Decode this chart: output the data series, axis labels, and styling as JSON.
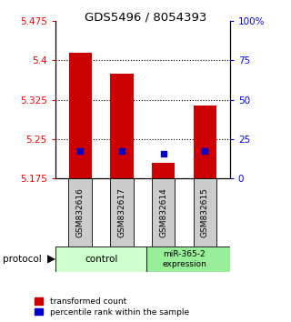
{
  "title": "GDS5496 / 8054393",
  "samples": [
    "GSM832616",
    "GSM832617",
    "GSM832614",
    "GSM832615"
  ],
  "red_values": [
    5.415,
    5.375,
    5.205,
    5.315
  ],
  "blue_values": [
    5.228,
    5.228,
    5.222,
    5.228
  ],
  "ylim": [
    5.175,
    5.475
  ],
  "yticks_left": [
    5.175,
    5.25,
    5.325,
    5.4,
    5.475
  ],
  "yticks_right": [
    0,
    25,
    50,
    75,
    100
  ],
  "bar_color": "#cc0000",
  "blue_color": "#0000cc",
  "baseline": 5.175,
  "legend_red": "transformed count",
  "legend_blue": "percentile rank within the sample",
  "bar_width": 0.55,
  "ctrl_color": "#ccffcc",
  "mir_color": "#99ee99",
  "sample_bg": "#cccccc"
}
